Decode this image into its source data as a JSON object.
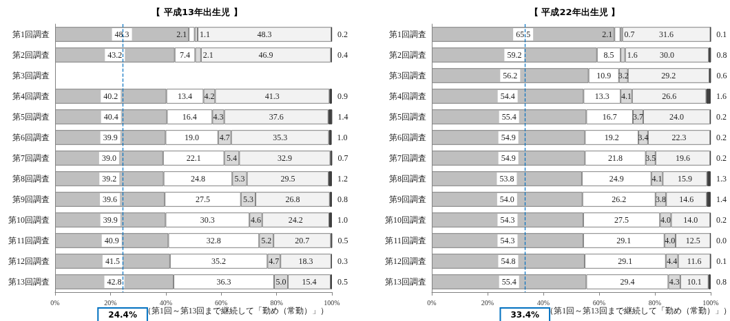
{
  "chart_data": [
    {
      "type": "bar",
      "orientation": "horizontal",
      "stacked": true,
      "title": "【 平成13年出生児 】",
      "categories": [
        "第1回調査",
        "第2回調査",
        "第3回調査",
        "第4回調査",
        "第5回調査",
        "第6回調査",
        "第7回調査",
        "第8回調査",
        "第9回調査",
        "第10回調査",
        "第11回調査",
        "第12回調査",
        "第13回調査"
      ],
      "series": [
        {
          "color": "#bfbfbf",
          "values": [
            48.3,
            43.2,
            null,
            40.2,
            40.4,
            39.9,
            39.0,
            39.2,
            39.6,
            39.9,
            40.9,
            41.5,
            42.8
          ],
          "value_labels": [
            "48.3",
            "43.2",
            null,
            "40.2",
            "40.4",
            "39.9",
            "39.0",
            "39.2",
            "39.6",
            "39.9",
            "40.9",
            "41.5",
            "42.8"
          ]
        },
        {
          "color": "#ffffff",
          "values": [
            2.1,
            7.4,
            null,
            13.4,
            16.4,
            19.0,
            22.1,
            24.8,
            27.5,
            30.3,
            32.8,
            35.2,
            36.3
          ],
          "value_labels": [
            "2.1",
            "7.4",
            null,
            "13.4",
            "16.4",
            "19.0",
            "22.1",
            "24.8",
            "27.5",
            "30.3",
            "32.8",
            "35.2",
            "36.3"
          ]
        },
        {
          "color": "#d9d9d9",
          "values": [
            1.1,
            2.1,
            null,
            4.2,
            4.3,
            4.7,
            5.4,
            5.3,
            5.3,
            4.6,
            5.2,
            4.7,
            5.0
          ],
          "value_labels": [
            "1.1",
            "2.1",
            null,
            "4.2",
            "4.3",
            "4.7",
            "5.4",
            "5.3",
            "5.3",
            "4.6",
            "5.2",
            "4.7",
            "5.0"
          ]
        },
        {
          "color": "#f2f2f2",
          "values": [
            48.3,
            46.9,
            null,
            41.3,
            37.6,
            35.3,
            32.9,
            29.5,
            26.8,
            24.2,
            20.7,
            18.3,
            15.4
          ],
          "value_labels": [
            "48.3",
            "46.9",
            null,
            "41.3",
            "37.6",
            "35.3",
            "32.9",
            "29.5",
            "26.8",
            "24.2",
            "20.7",
            "18.3",
            "15.4"
          ]
        },
        {
          "color": "#404040",
          "values": [
            0.2,
            0.4,
            null,
            0.9,
            1.4,
            1.0,
            0.7,
            1.2,
            0.8,
            1.0,
            0.5,
            0.3,
            0.5
          ],
          "value_labels": [
            "0.2",
            "0.4",
            null,
            "0.9",
            "1.4",
            "1.0",
            "0.7",
            "1.2",
            "0.8",
            "1.0",
            "0.5",
            "0.3",
            "0.5"
          ]
        }
      ],
      "xlim": [
        0,
        100
      ],
      "xticks": [
        {
          "value": 0,
          "label": "0%"
        },
        {
          "value": 20,
          "label": "20%"
        },
        {
          "value": 40,
          "label": "40%"
        },
        {
          "value": 60,
          "label": "60%"
        },
        {
          "value": 80,
          "label": "80%"
        },
        {
          "value": 100,
          "label": "100%"
        }
      ],
      "grid": false,
      "ref_lines": [
        {
          "axis": "x",
          "value": 24.4,
          "label": "24.4%",
          "color": "#0070c0",
          "line_style": "dashed"
        }
      ],
      "annotations": [
        "（第1回～第13回まで継続して「勤め（常勤）」）"
      ]
    },
    {
      "type": "bar",
      "orientation": "horizontal",
      "stacked": true,
      "title": "【 平成22年出生児 】",
      "categories": [
        "第1回調査",
        "第2回調査",
        "第3回調査",
        "第4回調査",
        "第5回調査",
        "第6回調査",
        "第7回調査",
        "第8回調査",
        "第9回調査",
        "第10回調査",
        "第11回調査",
        "第12回調査",
        "第13回調査"
      ],
      "series": [
        {
          "color": "#bfbfbf",
          "values": [
            65.5,
            59.2,
            56.2,
            54.4,
            55.4,
            54.9,
            54.9,
            53.8,
            54.0,
            54.3,
            54.3,
            54.8,
            55.4
          ],
          "value_labels": [
            "65.5",
            "59.2",
            "56.2",
            "54.4",
            "55.4",
            "54.9",
            "54.9",
            "53.8",
            "54.0",
            "54.3",
            "54.3",
            "54.8",
            "55.4"
          ]
        },
        {
          "color": "#ffffff",
          "values": [
            2.1,
            8.5,
            10.9,
            13.3,
            16.7,
            19.2,
            21.8,
            24.9,
            26.2,
            27.5,
            29.1,
            29.1,
            29.4
          ],
          "value_labels": [
            "2.1",
            "8.5",
            "10.9",
            "13.3",
            "16.7",
            "19.2",
            "21.8",
            "24.9",
            "26.2",
            "27.5",
            "29.1",
            "29.1",
            "29.4"
          ]
        },
        {
          "color": "#d9d9d9",
          "values": [
            0.7,
            1.6,
            3.2,
            4.1,
            3.7,
            3.4,
            3.5,
            4.1,
            3.8,
            4.0,
            4.0,
            4.4,
            4.3
          ],
          "value_labels": [
            "0.7",
            "1.6",
            "3.2",
            "4.1",
            "3.7",
            "3.4",
            "3.5",
            "4.1",
            "3.8",
            "4.0",
            "4.0",
            "4.4",
            "4.3"
          ]
        },
        {
          "color": "#f2f2f2",
          "values": [
            31.6,
            30.0,
            29.2,
            26.6,
            24.0,
            22.3,
            19.6,
            15.9,
            14.6,
            14.0,
            12.5,
            11.6,
            10.1
          ],
          "value_labels": [
            "31.6",
            "30.0",
            "29.2",
            "26.6",
            "24.0",
            "22.3",
            "19.6",
            "15.9",
            "14.6",
            "14.0",
            "12.5",
            "11.6",
            "10.1"
          ]
        },
        {
          "color": "#404040",
          "values": [
            0.1,
            0.8,
            0.6,
            1.6,
            0.2,
            0.2,
            0.2,
            1.3,
            1.4,
            0.2,
            0.0,
            0.1,
            0.8
          ],
          "value_labels": [
            "0.1",
            "0.8",
            "0.6",
            "1.6",
            "0.2",
            "0.2",
            "0.2",
            "1.3",
            "1.4",
            "0.2",
            "0.0",
            "0.1",
            "0.8"
          ]
        }
      ],
      "xlim": [
        0,
        100
      ],
      "xticks": [
        {
          "value": 0,
          "label": "0%"
        },
        {
          "value": 20,
          "label": "20%"
        },
        {
          "value": 40,
          "label": "40%"
        },
        {
          "value": 60,
          "label": "60%"
        },
        {
          "value": 80,
          "label": "80%"
        },
        {
          "value": 100,
          "label": "100%"
        }
      ],
      "grid": false,
      "ref_lines": [
        {
          "axis": "x",
          "value": 33.4,
          "label": "33.4%",
          "color": "#0070c0",
          "line_style": "dashed"
        }
      ],
      "annotations": [
        "（第1回～第13回まで継続して「勤め（常勤）」）"
      ]
    }
  ]
}
